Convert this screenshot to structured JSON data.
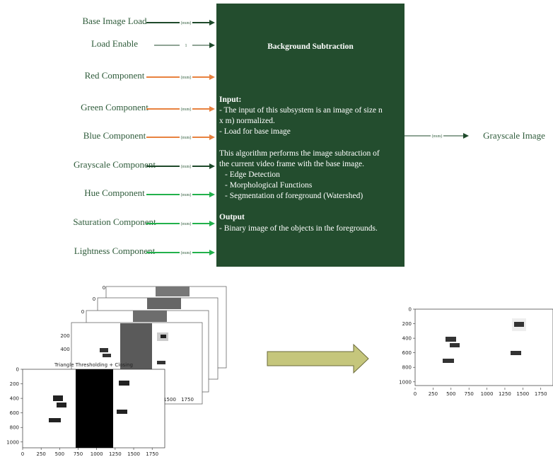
{
  "inputs": [
    {
      "label": "Base Image Load",
      "bus": "(nxm)",
      "color": "#1f4a2b"
    },
    {
      "label": "Load  Enable",
      "bus": "1",
      "color": "#1f4a2b"
    },
    {
      "label": "Red Component",
      "bus": "(nxm)",
      "color": "#e8823f"
    },
    {
      "label": "Green Component",
      "bus": "(nxm)",
      "color": "#e8823f"
    },
    {
      "label": "Blue Component",
      "bus": "(nxm)",
      "color": "#e8823f"
    },
    {
      "label": "Grayscale Component",
      "bus": "(nxm)",
      "color": "#1f4a2b"
    },
    {
      "label": "Hue Component",
      "bus": "(nxm)",
      "color": "#22b14c"
    },
    {
      "label": "Saturation Component",
      "bus": "(nxm)",
      "color": "#22b14c"
    },
    {
      "label": "Lightness Component",
      "bus": "(nxm)",
      "color": "#22b14c"
    }
  ],
  "block": {
    "title": "Background Subtraction",
    "input": {
      "heading": "Input:",
      "lines": [
        "- The input of this subsystem is an image of size n",
        "x m) normalized.",
        "- Load for base image"
      ]
    },
    "description": {
      "lines": [
        "This algorithm performs the image subtraction of",
        "the current video frame with the base image."
      ],
      "bullets": [
        "- Edge Detection",
        "- Morphological Functions",
        "- Segmentation of foreground (Watershed)"
      ]
    },
    "output": {
      "heading": "Output",
      "lines": [
        "- Binary image of the objects in the foregrounds."
      ]
    }
  },
  "output": {
    "bus": "(nxm)",
    "label": "Grayscale Image"
  },
  "front_plot": {
    "title": "Triangle Thresholding + Closing",
    "xlim": [
      0,
      1920
    ],
    "ylim": [
      0,
      1080
    ],
    "xticks": [
      0,
      250,
      500,
      750,
      1000,
      1250,
      1500,
      1750
    ],
    "yticks": [
      0,
      200,
      400,
      600,
      800,
      1000
    ]
  },
  "back_plot_tick_labels": [
    0,
    0,
    0,
    200,
    400,
    1500,
    1750
  ],
  "result_plot": {
    "xlim": [
      0,
      1920
    ],
    "ylim": [
      0,
      1080
    ],
    "xticks": [
      0,
      250,
      500,
      750,
      1000,
      1250,
      1500,
      1750
    ],
    "yticks": [
      0,
      200,
      400,
      600,
      800,
      1000
    ]
  }
}
